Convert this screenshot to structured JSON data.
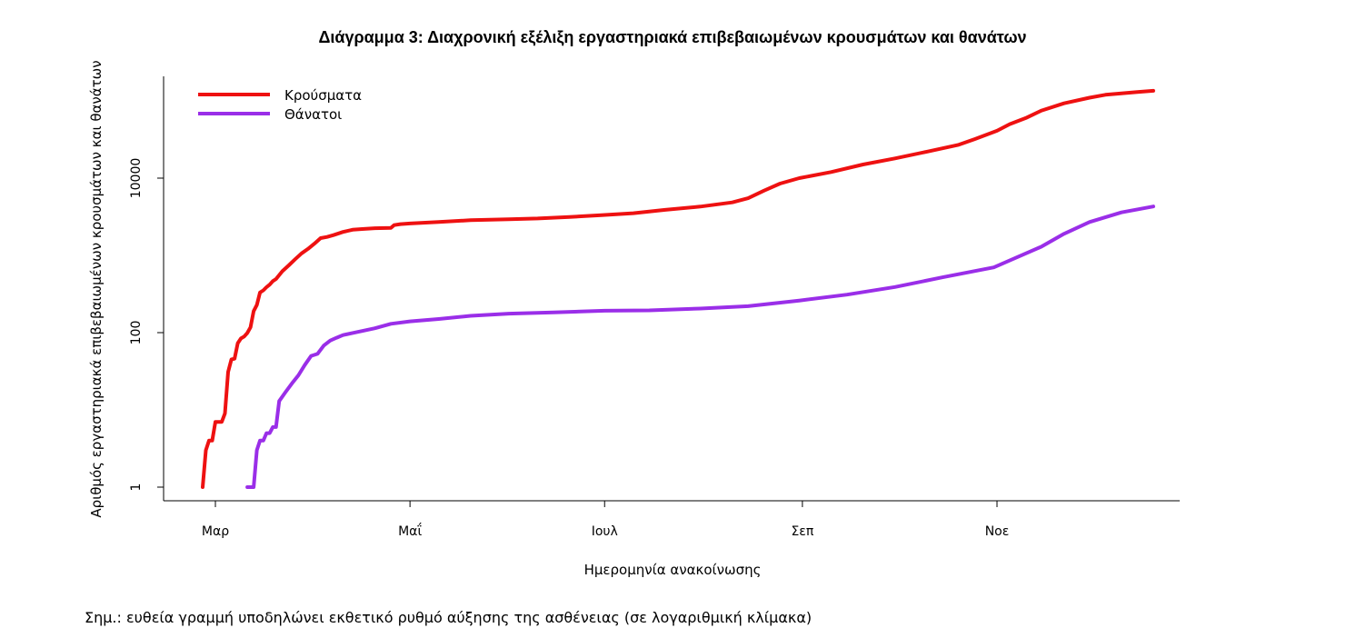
{
  "note": "Σημ.: ευθεία γραμμή υποδηλώνει εκθετικό ρυθμό αύξησης της ασθένειας (σε λογαριθμική κλίμακα)",
  "chart_data": {
    "type": "line",
    "title": "Διάγραμμα 3: Διαχρονική εξέλιξη εργαστηριακά επιβεβαιωμένων κρουσμάτων και θανάτων",
    "xlabel": "Ημερομηνία ανακοίνωσης",
    "ylabel": "Αριθμός εργαστηριακά επιβεβαιωμένων κρουσμάτων και θανάτων",
    "y_scale": "log10",
    "ylim": [
      1,
      100000
    ],
    "y_ticks": [
      {
        "value": 1,
        "label": "1"
      },
      {
        "value": 100,
        "label": "100"
      },
      {
        "value": 10000,
        "label": "10000"
      }
    ],
    "xlim": [
      "2020-02-20",
      "2020-12-23"
    ],
    "x_ticks": [
      {
        "date": "2020-03-01",
        "label": "Μαρ"
      },
      {
        "date": "2020-05-01",
        "label": "Μαΐ"
      },
      {
        "date": "2020-07-01",
        "label": "Ιουλ"
      },
      {
        "date": "2020-09-01",
        "label": "Σεπ"
      },
      {
        "date": "2020-11-01",
        "label": "Νοε"
      }
    ],
    "legend_position": "top-left",
    "grid": false,
    "series": [
      {
        "name": "Κρούσματα",
        "color": "#ee1111",
        "points": [
          [
            "2020-02-26",
            1
          ],
          [
            "2020-02-27",
            3
          ],
          [
            "2020-02-28",
            4
          ],
          [
            "2020-02-29",
            4
          ],
          [
            "2020-03-01",
            7
          ],
          [
            "2020-03-03",
            7
          ],
          [
            "2020-03-04",
            9
          ],
          [
            "2020-03-05",
            31
          ],
          [
            "2020-03-06",
            45
          ],
          [
            "2020-03-07",
            46
          ],
          [
            "2020-03-08",
            73
          ],
          [
            "2020-03-09",
            84
          ],
          [
            "2020-03-10",
            89
          ],
          [
            "2020-03-11",
            99
          ],
          [
            "2020-03-12",
            117
          ],
          [
            "2020-03-13",
            190
          ],
          [
            "2020-03-14",
            228
          ],
          [
            "2020-03-15",
            331
          ],
          [
            "2020-03-16",
            352
          ],
          [
            "2020-03-17",
            387
          ],
          [
            "2020-03-18",
            418
          ],
          [
            "2020-03-19",
            464
          ],
          [
            "2020-03-20",
            495
          ],
          [
            "2020-03-22",
            624
          ],
          [
            "2020-03-24",
            743
          ],
          [
            "2020-03-26",
            892
          ],
          [
            "2020-03-28",
            1061
          ],
          [
            "2020-03-30",
            1212
          ],
          [
            "2020-04-01",
            1415
          ],
          [
            "2020-04-03",
            1673
          ],
          [
            "2020-04-05",
            1735
          ],
          [
            "2020-04-07",
            1832
          ],
          [
            "2020-04-10",
            2011
          ],
          [
            "2020-04-13",
            2145
          ],
          [
            "2020-04-16",
            2192
          ],
          [
            "2020-04-20",
            2245
          ],
          [
            "2020-04-25",
            2267
          ],
          [
            "2020-04-26",
            2466
          ],
          [
            "2020-04-28",
            2540
          ],
          [
            "2020-05-01",
            2591
          ],
          [
            "2020-05-10",
            2710
          ],
          [
            "2020-05-20",
            2850
          ],
          [
            "2020-06-01",
            2937
          ],
          [
            "2020-06-10",
            3004
          ],
          [
            "2020-06-20",
            3148
          ],
          [
            "2020-06-30",
            3310
          ],
          [
            "2020-07-10",
            3519
          ],
          [
            "2020-07-20",
            3890
          ],
          [
            "2020-07-31",
            4279
          ],
          [
            "2020-08-10",
            4855
          ],
          [
            "2020-08-15",
            5500
          ],
          [
            "2020-08-20",
            6900
          ],
          [
            "2020-08-25",
            8500
          ],
          [
            "2020-08-31",
            10000
          ],
          [
            "2020-09-10",
            12000
          ],
          [
            "2020-09-20",
            15000
          ],
          [
            "2020-09-30",
            18000
          ],
          [
            "2020-10-10",
            22000
          ],
          [
            "2020-10-20",
            27000
          ],
          [
            "2020-10-25",
            32000
          ],
          [
            "2020-11-01",
            41000
          ],
          [
            "2020-11-05",
            50000
          ],
          [
            "2020-11-10",
            60000
          ],
          [
            "2020-11-15",
            75000
          ],
          [
            "2020-11-22",
            93000
          ],
          [
            "2020-11-30",
            110000
          ],
          [
            "2020-12-05",
            120000
          ],
          [
            "2020-12-10",
            125000
          ],
          [
            "2020-12-15",
            130000
          ],
          [
            "2020-12-20",
            135000
          ]
        ]
      },
      {
        "name": "Θάνατοι",
        "color": "#9a2ee8",
        "points": [
          [
            "2020-03-11",
            1
          ],
          [
            "2020-03-13",
            1
          ],
          [
            "2020-03-14",
            3
          ],
          [
            "2020-03-15",
            4
          ],
          [
            "2020-03-16",
            4
          ],
          [
            "2020-03-17",
            5
          ],
          [
            "2020-03-18",
            5
          ],
          [
            "2020-03-19",
            6
          ],
          [
            "2020-03-20",
            6
          ],
          [
            "2020-03-21",
            13
          ],
          [
            "2020-03-23",
            17
          ],
          [
            "2020-03-25",
            22
          ],
          [
            "2020-03-27",
            28
          ],
          [
            "2020-03-29",
            38
          ],
          [
            "2020-03-31",
            50
          ],
          [
            "2020-04-02",
            53
          ],
          [
            "2020-04-04",
            68
          ],
          [
            "2020-04-06",
            79
          ],
          [
            "2020-04-08",
            86
          ],
          [
            "2020-04-10",
            93
          ],
          [
            "2020-04-13",
            99
          ],
          [
            "2020-04-16",
            105
          ],
          [
            "2020-04-20",
            114
          ],
          [
            "2020-04-25",
            130
          ],
          [
            "2020-05-01",
            140
          ],
          [
            "2020-05-10",
            150
          ],
          [
            "2020-05-20",
            165
          ],
          [
            "2020-06-01",
            176
          ],
          [
            "2020-06-15",
            183
          ],
          [
            "2020-07-01",
            192
          ],
          [
            "2020-07-15",
            194
          ],
          [
            "2020-07-31",
            205
          ],
          [
            "2020-08-15",
            220
          ],
          [
            "2020-08-31",
            260
          ],
          [
            "2020-09-15",
            310
          ],
          [
            "2020-09-30",
            390
          ],
          [
            "2020-10-15",
            520
          ],
          [
            "2020-10-31",
            700
          ],
          [
            "2020-11-05",
            860
          ],
          [
            "2020-11-15",
            1300
          ],
          [
            "2020-11-22",
            1900
          ],
          [
            "2020-11-30",
            2700
          ],
          [
            "2020-12-10",
            3600
          ],
          [
            "2020-12-20",
            4300
          ]
        ]
      }
    ]
  }
}
